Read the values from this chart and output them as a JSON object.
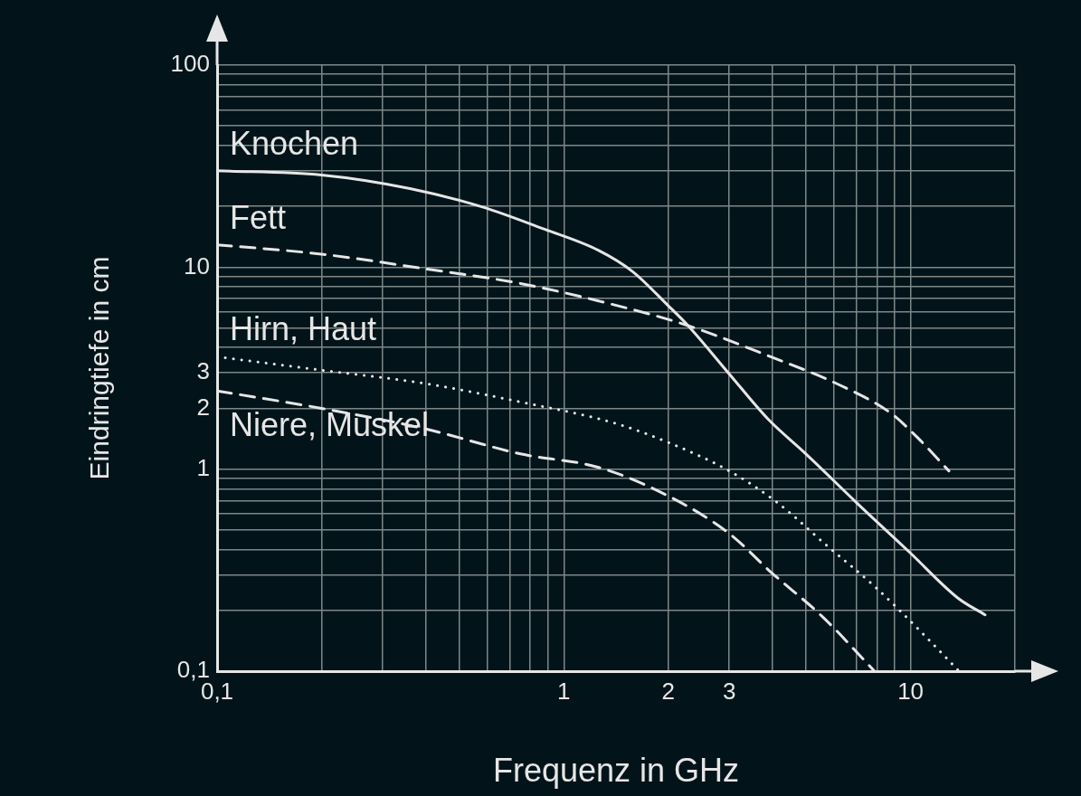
{
  "chart_data": {
    "type": "line",
    "xlabel": "Frequenz in GHz",
    "ylabel": "Eindringtiefe in cm",
    "log": "xy",
    "grid": true,
    "legend": false,
    "marker": "none",
    "xlim": [
      0.1,
      20
    ],
    "ylim": [
      0.1,
      100
    ],
    "xticks": [
      {
        "value": 0.1,
        "label": "0,1"
      },
      {
        "value": 0.2,
        "label": null
      },
      {
        "value": 0.3,
        "label": null
      },
      {
        "value": 0.4,
        "label": null
      },
      {
        "value": 0.5,
        "label": null
      },
      {
        "value": 0.6,
        "label": null
      },
      {
        "value": 0.7,
        "label": null
      },
      {
        "value": 0.8,
        "label": null
      },
      {
        "value": 0.9,
        "label": null
      },
      1,
      2,
      3,
      {
        "value": 4,
        "label": null
      },
      {
        "value": 5,
        "label": null
      },
      {
        "value": 6,
        "label": null
      },
      {
        "value": 7,
        "label": null
      },
      {
        "value": 8,
        "label": null
      },
      {
        "value": 9,
        "label": null
      },
      10,
      {
        "value": 20,
        "label": null
      }
    ],
    "yticks": [
      {
        "value": 0.1,
        "label": "0,1"
      },
      {
        "value": 0.2,
        "label": null
      },
      {
        "value": 0.3,
        "label": null
      },
      {
        "value": 0.4,
        "label": null
      },
      {
        "value": 0.5,
        "label": null
      },
      {
        "value": 0.6,
        "label": null
      },
      {
        "value": 0.7,
        "label": null
      },
      {
        "value": 0.8,
        "label": null
      },
      {
        "value": 0.9,
        "label": null
      },
      1,
      2,
      3,
      {
        "value": 4,
        "label": null
      },
      {
        "value": 5,
        "label": null
      },
      {
        "value": 6,
        "label": null
      },
      {
        "value": 7,
        "label": null
      },
      {
        "value": 8,
        "label": null
      },
      {
        "value": 9,
        "label": null
      },
      10,
      {
        "value": 20,
        "label": null
      },
      {
        "value": 30,
        "label": null
      },
      {
        "value": 40,
        "label": null
      },
      {
        "value": 50,
        "label": null
      },
      {
        "value": 60,
        "label": null
      },
      {
        "value": 70,
        "label": null
      },
      {
        "value": 80,
        "label": null
      },
      {
        "value": 90,
        "label": null
      },
      100
    ],
    "series": [
      {
        "name": "Knochen",
        "color": "#e6e6e6",
        "line_style": "solid",
        "x": [
          0.1,
          0.2,
          0.36,
          0.58,
          0.88,
          1.26,
          1.58,
          1.99,
          2.29,
          3.0,
          3.88,
          4.99,
          7.0,
          9.9,
          13.7,
          16.4
        ],
        "values": [
          30,
          28.6,
          24.5,
          19.9,
          15.4,
          12.1,
          9.5,
          6.5,
          5.1,
          2.96,
          1.77,
          1.19,
          0.68,
          0.39,
          0.23,
          0.19
        ]
      },
      {
        "name": "Fett",
        "color": "#e6e6e6",
        "line_style": "dashed",
        "x": [
          0.1,
          0.2,
          0.4,
          0.75,
          1.26,
          2.23,
          3.95,
          6.27,
          8.82,
          10.4,
          12.9
        ],
        "values": [
          12.9,
          11.6,
          9.8,
          8.3,
          6.8,
          5.2,
          3.6,
          2.6,
          1.88,
          1.45,
          0.98
        ]
      },
      {
        "name": "Hirn, Haut",
        "color": "#e6e6e6",
        "line_style": "dotted",
        "x": [
          0.1,
          0.2,
          0.4,
          0.75,
          1.4,
          1.99,
          3.0,
          4.14,
          5.72,
          7.87,
          10.4,
          13.8
        ],
        "values": [
          3.6,
          3.09,
          2.65,
          2.15,
          1.69,
          1.36,
          0.98,
          0.68,
          0.42,
          0.263,
          0.165,
          0.1
        ]
      },
      {
        "name": "Niere, Muskel",
        "color": "#e6e6e6",
        "line_style": "dashed",
        "x": [
          0.1,
          0.2,
          0.4,
          0.75,
          1.26,
          1.99,
          3.0,
          3.95,
          5.59,
          7.87
        ],
        "values": [
          2.44,
          2.0,
          1.58,
          1.19,
          1.02,
          0.74,
          0.48,
          0.31,
          0.185,
          0.1
        ]
      }
    ]
  }
}
